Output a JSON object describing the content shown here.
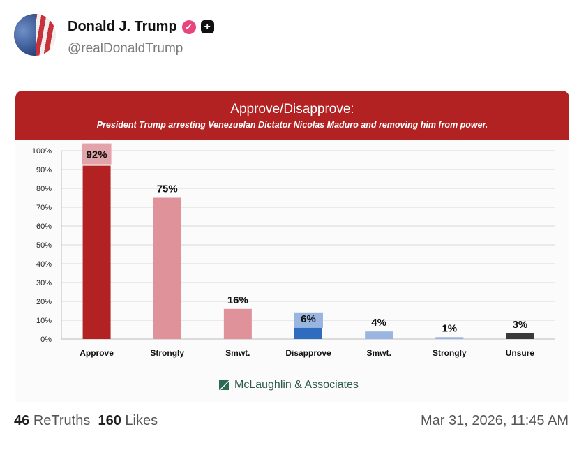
{
  "post": {
    "author_name": "Donald J. Trump",
    "handle": "@realDonaldTrump",
    "verified_icon": "verified-badge-icon",
    "plus_icon": "plus-icon",
    "retruths_count": "46",
    "retruths_label": "ReTruths",
    "likes_count": "160",
    "likes_label": "Likes",
    "timestamp": "Mar 31, 2026, 11:45 AM"
  },
  "chart_data": {
    "type": "bar",
    "title": "Approve/Disapprove:",
    "subtitle": "President Trump arresting Venezuelan Dictator Nicolas Maduro and removing him from power.",
    "categories": [
      "Approve",
      "Strongly",
      "Smwt.",
      "Disapprove",
      "Smwt.",
      "Strongly",
      "Unsure"
    ],
    "values": [
      92,
      75,
      16,
      6,
      4,
      1,
      3
    ],
    "data_labels": [
      "92%",
      "75%",
      "16%",
      "6%",
      "4%",
      "1%",
      "3%"
    ],
    "colors": [
      "#b22222",
      "#e0929a",
      "#e0929a",
      "#2e6cc0",
      "#9ab6e0",
      "#9ab6e0",
      "#3a3a3a"
    ],
    "ylim": [
      0,
      100
    ],
    "yticks": [
      "0%",
      "10%",
      "20%",
      "30%",
      "40%",
      "50%",
      "60%",
      "70%",
      "80%",
      "90%",
      "100%"
    ],
    "grid": true,
    "source": "McLaughlin & Associates"
  }
}
